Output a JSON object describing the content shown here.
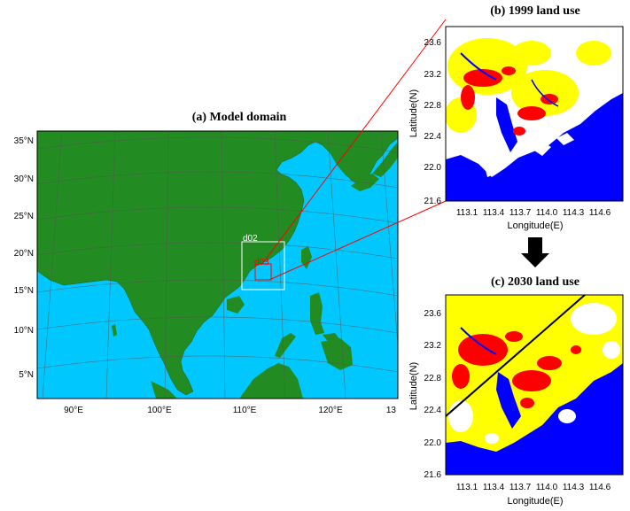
{
  "colors": {
    "ocean": "#00c8ff",
    "land": "#228b22",
    "urban": "#ff0000",
    "agri": "#ffff00",
    "water": "#0000ff",
    "other": "#ffffff",
    "d02_box": "#ffffff",
    "d03_box": "#ff0000",
    "callout": "#ff0000"
  },
  "panel_a": {
    "title": "(a) Model domain",
    "lat_labels": [
      "35°N",
      "30°N",
      "25°N",
      "20°N",
      "15°N",
      "10°N",
      "5°N"
    ],
    "lon_labels": [
      "90°E",
      "100°E",
      "110°E",
      "120°E",
      "13"
    ],
    "d02_label": "d02",
    "d03_label": "d03"
  },
  "panel_b": {
    "title": "(b) 1999 land use",
    "y_ticks": [
      "23.6",
      "23.2",
      "22.8",
      "22.4",
      "22.0",
      "21.6"
    ],
    "x_ticks": [
      "113.1",
      "113.4",
      "113.7",
      "114.0",
      "114.3",
      "114.6"
    ],
    "ylabel": "Latitude(N)",
    "xlabel": "Longitude(E)"
  },
  "panel_c": {
    "title": "(c) 2030 land use",
    "y_ticks": [
      "23.6",
      "23.2",
      "22.8",
      "22.4",
      "22.0",
      "21.6"
    ],
    "x_ticks": [
      "113.1",
      "113.4",
      "113.7",
      "114.0",
      "114.3",
      "114.6"
    ],
    "ylabel": "Latitude(N)",
    "xlabel": "Longitude(E)"
  }
}
